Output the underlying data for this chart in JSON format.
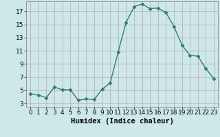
{
  "x": [
    0,
    1,
    2,
    3,
    4,
    5,
    6,
    7,
    8,
    9,
    10,
    11,
    12,
    13,
    14,
    15,
    16,
    17,
    18,
    19,
    20,
    21,
    22,
    23
  ],
  "y": [
    4.5,
    4.3,
    3.9,
    5.5,
    5.1,
    5.1,
    3.5,
    3.7,
    3.6,
    5.2,
    6.1,
    10.8,
    15.3,
    17.7,
    18.1,
    17.4,
    17.5,
    16.8,
    14.7,
    11.9,
    10.3,
    10.2,
    8.3,
    6.8
  ],
  "line_color": "#2e7d6e",
  "marker": "D",
  "marker_size": 2.5,
  "line_width": 1.0,
  "bg_color": "#cce9e8",
  "grid_color": "#c0a0a8",
  "xlabel": "Humidex (Indice chaleur)",
  "xlabel_fontsize": 7.5,
  "tick_fontsize": 6.5,
  "xlim": [
    -0.5,
    23.5
  ],
  "ylim": [
    2.5,
    18.5
  ],
  "yticks": [
    3,
    5,
    7,
    9,
    11,
    13,
    15,
    17
  ],
  "xticks": [
    0,
    1,
    2,
    3,
    4,
    5,
    6,
    7,
    8,
    9,
    10,
    11,
    12,
    13,
    14,
    15,
    16,
    17,
    18,
    19,
    20,
    21,
    22,
    23
  ]
}
